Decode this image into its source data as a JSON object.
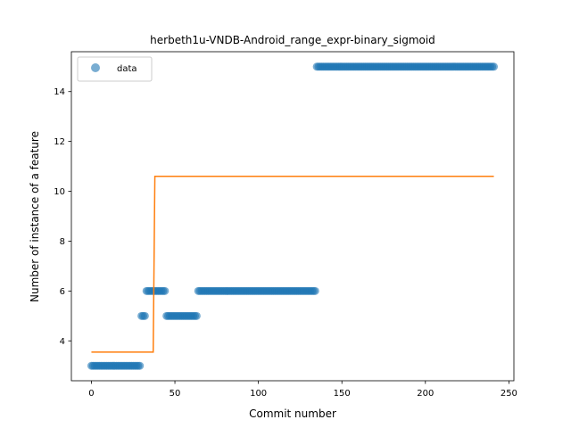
{
  "chart_data": {
    "type": "scatter",
    "title": "herbeth1u-VNDB-Android_range_expr-binary_sigmoid",
    "xlabel": "Commit number",
    "ylabel": "Number of instance of a feature",
    "xlim": [
      -12,
      253
    ],
    "ylim": [
      2.4,
      15.6
    ],
    "xticks": [
      0,
      50,
      100,
      150,
      200,
      250
    ],
    "yticks": [
      4,
      6,
      8,
      10,
      12,
      14
    ],
    "grid": false,
    "legend": {
      "placement": "top-left",
      "entries": [
        "data"
      ]
    },
    "colors": {
      "data": "#1f77b4",
      "fit": "#ff7f0e"
    },
    "scatter_series": {
      "name": "data",
      "segments": [
        {
          "x_start": 0,
          "x_end": 29,
          "y": 3
        },
        {
          "x_start": 30,
          "x_end": 32,
          "y": 5
        },
        {
          "x_start": 33,
          "x_end": 44,
          "y": 6
        },
        {
          "x_start": 45,
          "x_end": 63,
          "y": 5
        },
        {
          "x_start": 64,
          "x_end": 134,
          "y": 6
        },
        {
          "x_start": 135,
          "x_end": 241,
          "y": 15
        }
      ]
    },
    "fit_series": {
      "x": [
        0,
        37,
        38,
        241
      ],
      "y": [
        3.55,
        3.55,
        10.6,
        10.6
      ]
    }
  }
}
